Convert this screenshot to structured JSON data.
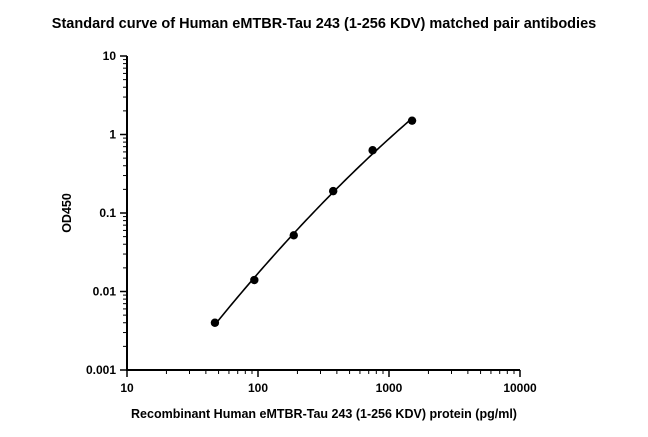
{
  "chart_data": {
    "type": "scatter",
    "title": "Standard curve of Human eMTBR-Tau 243 (1-256 KDV) matched pair antibodies",
    "xlabel": "Recombinant Human eMTBR-Tau 243 (1-256 KDV) protein (pg/ml)",
    "ylabel": "OD450",
    "x_scale": "log",
    "y_scale": "log",
    "xlim": [
      10,
      10000
    ],
    "ylim": [
      0.001,
      10
    ],
    "x_ticks": [
      10,
      100,
      1000,
      10000
    ],
    "x_tick_labels": [
      "10",
      "100",
      "1000",
      "10000"
    ],
    "y_ticks": [
      0.001,
      0.01,
      0.1,
      1,
      10
    ],
    "y_tick_labels": [
      "0.001",
      "0.01",
      "0.1",
      "1",
      "10"
    ],
    "grid": false,
    "legend": "none",
    "fit_curve": true,
    "series": [
      {
        "x": [
          46.9,
          93.75,
          187.5,
          375,
          750,
          1500
        ],
        "y": [
          0.004,
          0.014,
          0.052,
          0.19,
          0.63,
          1.5
        ]
      }
    ],
    "colors": {
      "marker": "#000000",
      "curve": "#000000",
      "axes": "#000000"
    }
  }
}
